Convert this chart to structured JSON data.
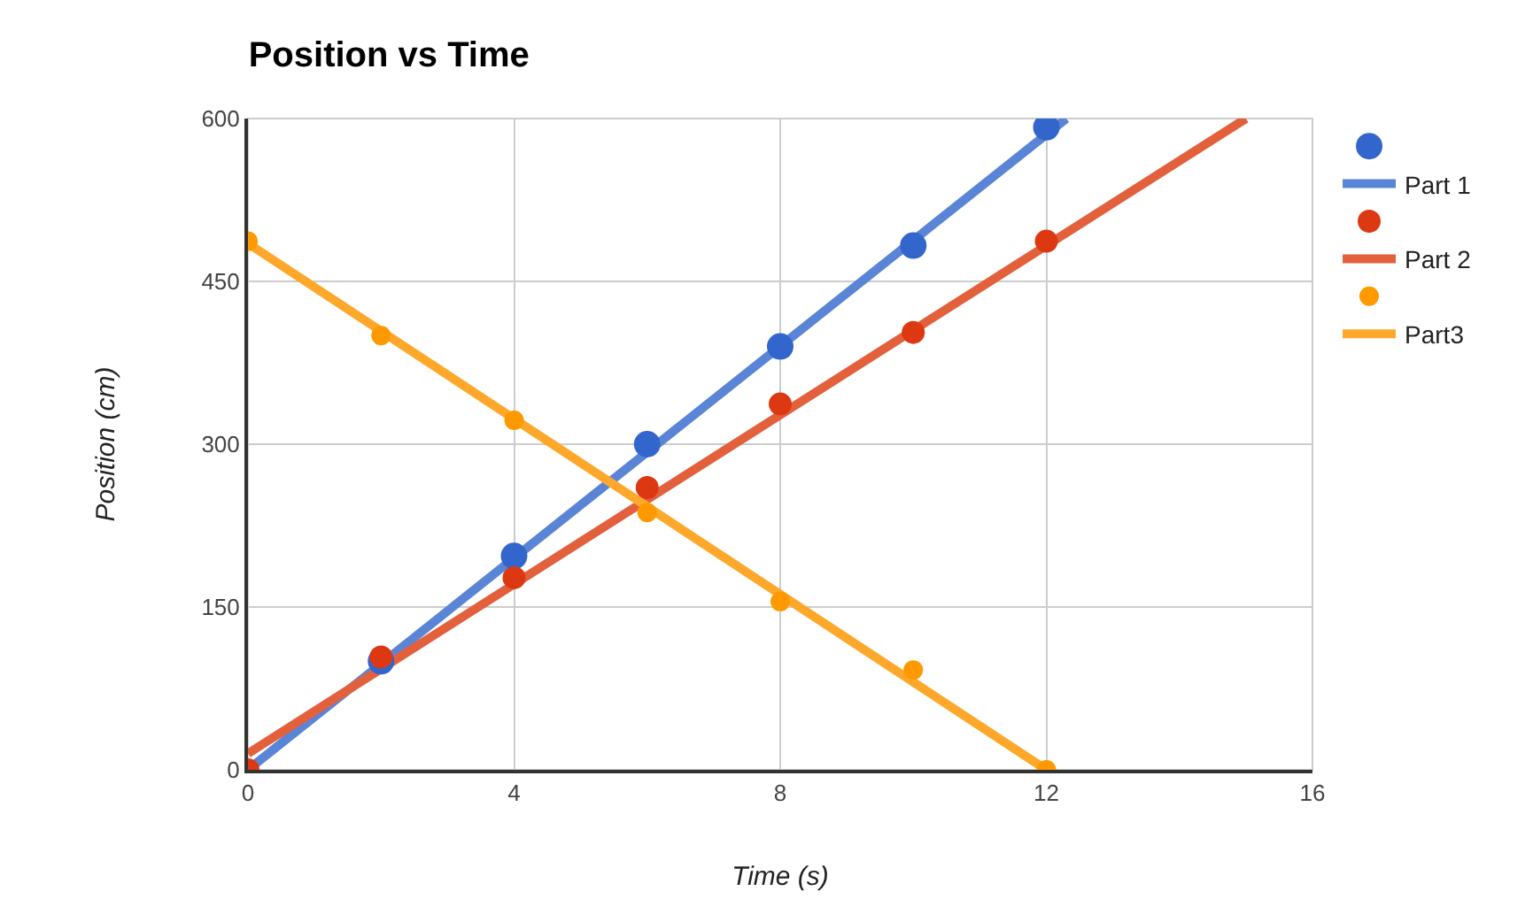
{
  "chart_data": {
    "type": "scatter",
    "title": "Position vs Time",
    "xlabel": "Time (s)",
    "ylabel": "Position (cm)",
    "x": [
      0,
      2,
      4,
      6,
      8,
      10,
      12
    ],
    "series": [
      {
        "color": "#3366cc",
        "marker": "circle",
        "values": [
          null,
          100,
          197,
          300,
          390,
          483,
          592
        ]
      },
      {
        "type": "line",
        "name": "Part 1",
        "color": "#5a85d6",
        "marker": "none",
        "x": [
          0,
          12.3
        ],
        "values": [
          0,
          600
        ]
      },
      {
        "color": "#dc3912",
        "marker": "circle",
        "values": [
          0,
          104,
          177,
          260,
          337,
          403,
          487
        ]
      },
      {
        "type": "line",
        "name": "Part 2",
        "color": "#e3603d",
        "marker": "none",
        "x": [
          0,
          15
        ],
        "values": [
          15,
          600
        ]
      },
      {
        "color": "#ff9900",
        "marker": "circle",
        "values": [
          487,
          400,
          322,
          237,
          155,
          92,
          0
        ]
      },
      {
        "type": "line",
        "name": "Part3",
        "color": "#fda82b",
        "marker": "none",
        "x": [
          0,
          12
        ],
        "values": [
          485,
          0
        ]
      }
    ],
    "xlim": [
      0,
      16
    ],
    "xticks": [
      0,
      4,
      8,
      12,
      16
    ],
    "ylim": [
      0,
      600
    ],
    "yticks": [
      0,
      150,
      300,
      450,
      600
    ],
    "grid": true,
    "legend": "top right"
  }
}
